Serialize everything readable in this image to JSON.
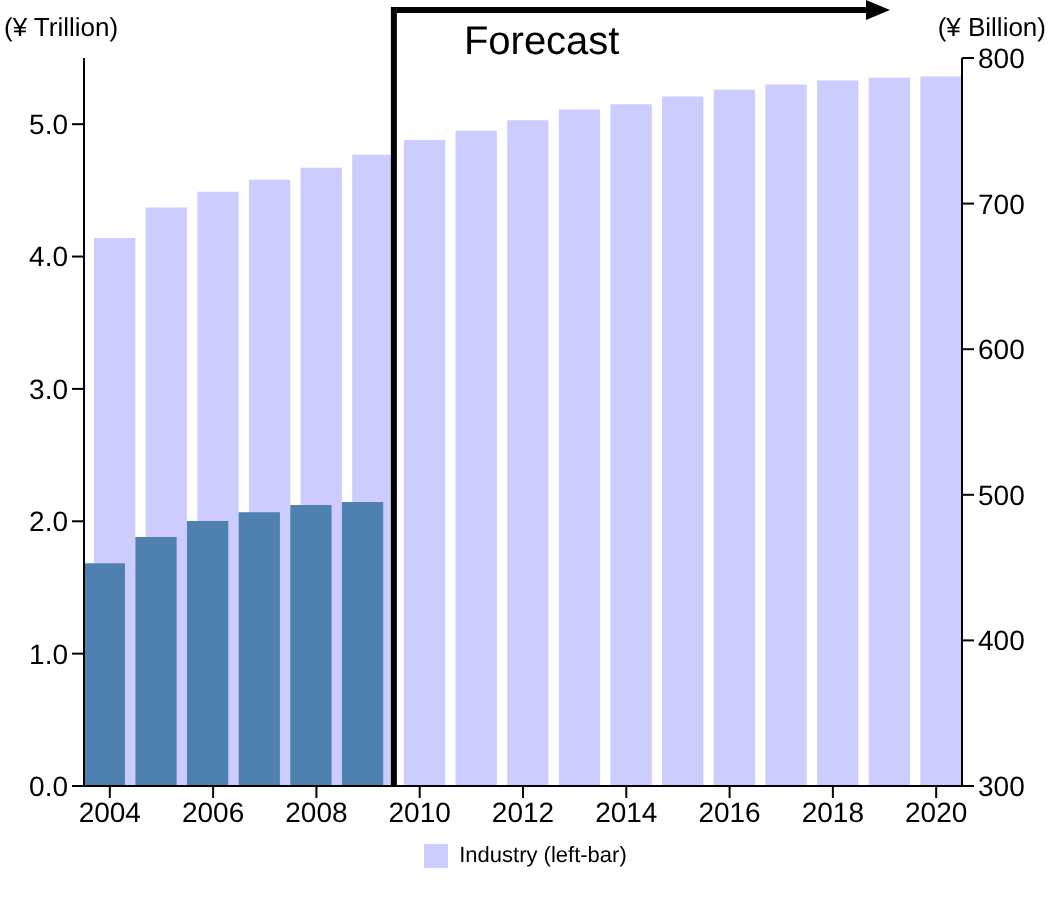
{
  "chart_data": {
    "type": "bar",
    "ylabel": "(¥ Trillion)",
    "y2label": "(¥ Billion)",
    "ref_lines": [
      {
        "axis": "x",
        "value": 2009.5,
        "label": "Forecast",
        "color": "#000000"
      }
    ],
    "x": [
      2004,
      2005,
      2006,
      2007,
      2008,
      2009,
      2010,
      2011,
      2012,
      2013,
      2014,
      2015,
      2016,
      2017,
      2018,
      2019,
      2020
    ],
    "xlim": [
      2003.5,
      2020.5
    ],
    "xticks": [
      2004,
      2006,
      2008,
      2010,
      2012,
      2014,
      2016,
      2018,
      2020
    ],
    "series": [
      {
        "name": "Industry (left-bar)",
        "color": "#ccccff",
        "values": [
          4.14,
          4.37,
          4.49,
          4.58,
          4.67,
          4.77,
          4.88,
          4.95,
          5.03,
          5.11,
          5.15,
          5.21,
          5.26,
          5.3,
          5.33,
          5.35,
          5.36
        ]
      },
      {
        "color": "#4f81b0",
        "axis": "y2",
        "values": [
          453,
          471,
          482,
          488,
          493,
          495,
          null,
          null,
          null,
          null,
          null,
          null,
          null,
          null,
          null,
          null,
          null
        ]
      }
    ],
    "ylim": [
      0,
      5.5
    ],
    "yticks": [
      {
        "value": 0,
        "label": "0.0"
      },
      {
        "value": 1,
        "label": "1.0"
      },
      {
        "value": 2,
        "label": "2.0"
      },
      {
        "value": 3,
        "label": "3.0"
      },
      {
        "value": 4,
        "label": "4.0"
      },
      {
        "value": 5,
        "label": "5.0"
      }
    ],
    "y2lim": [
      300,
      800
    ],
    "y2ticks": [
      300,
      400,
      500,
      600,
      700,
      800
    ],
    "grid": false,
    "legend": "bottom"
  }
}
